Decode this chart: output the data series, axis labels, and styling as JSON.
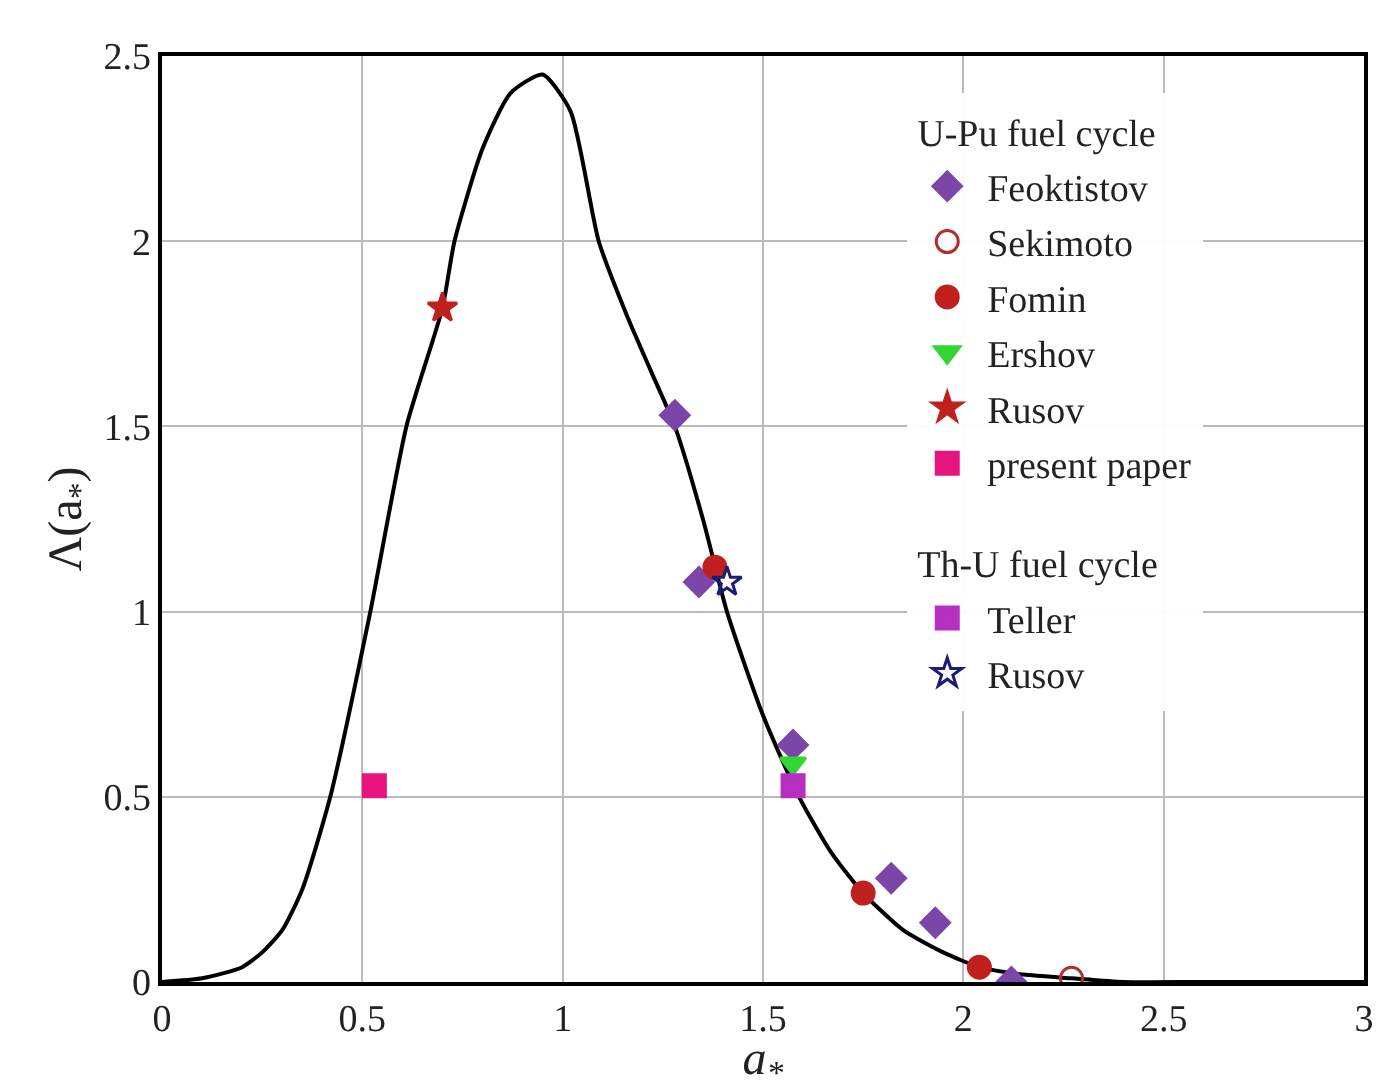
{
  "chart_data": {
    "type": "scatter",
    "xlabel": "a$_{*}$",
    "ylabel": "Λ(a$_{*}$)",
    "xlim": [
      0,
      3
    ],
    "ylim": [
      0,
      2.5
    ],
    "xticks": [
      0,
      0.5,
      1,
      1.5,
      2,
      2.5,
      3
    ],
    "yticks": [
      0,
      0.5,
      1,
      1.5,
      2,
      2.5
    ],
    "grid": true,
    "legend": "top right",
    "legend_title": [
      "U-Pu fuel cycle",
      "Th-U fuel cycle"
    ],
    "series": [
      {
        "name": "Feoktistov",
        "color": "#7b46a8",
        "marker": "diamond",
        "x": [
          1.28,
          1.34,
          1.575,
          1.82,
          1.93,
          2.12
        ],
        "values": [
          1.53,
          1.08,
          0.64,
          0.28,
          0.16,
          0
        ]
      },
      {
        "name": "Sekimoto",
        "color": "#b03030",
        "marker": "circle-open",
        "x": [
          2.27
        ],
        "values": [
          0.01
        ]
      },
      {
        "name": "Fomin",
        "color": "#c0201e",
        "marker": "circle",
        "x": [
          1.38,
          1.75,
          2.04
        ],
        "values": [
          1.12,
          0.24,
          0.04
        ]
      },
      {
        "name": "Ershov",
        "color": "#33d633",
        "marker": "triangle-down",
        "x": [
          1.575
        ],
        "values": [
          0.59
        ]
      },
      {
        "name": "Rusov",
        "color": "#c0201e",
        "marker": "star",
        "x": [
          0.7
        ],
        "values": [
          1.82
        ]
      },
      {
        "name": "present paper",
        "color": "#e8147f",
        "marker": "square",
        "x": [
          0.53
        ],
        "values": [
          0.53
        ]
      },
      {
        "type": "line",
        "color": "#000000",
        "marker": "none",
        "line_style": "solid",
        "x": [
          0,
          0.1,
          0.2,
          0.25,
          0.3,
          0.35,
          0.42,
          0.52,
          0.61,
          0.7,
          0.73,
          0.8,
          0.87,
          0.95,
          1.02,
          1.09,
          1.16,
          1.22,
          1.28,
          1.35,
          1.41,
          1.5,
          1.59,
          1.67,
          1.75,
          1.85,
          1.95,
          2.04,
          2.15,
          2.27,
          2.4,
          2.6,
          3
        ],
        "values": [
          0,
          0.01,
          0.04,
          0.08,
          0.14,
          0.25,
          0.5,
          1,
          1.5,
          1.82,
          2,
          2.25,
          2.4,
          2.45,
          2.35,
          2,
          1.8,
          1.65,
          1.5,
          1.25,
          1,
          0.72,
          0.5,
          0.35,
          0.24,
          0.14,
          0.08,
          0.04,
          0.02,
          0.01,
          0,
          0,
          0
        ]
      },
      {
        "name": "Teller",
        "color": "#b62fc0",
        "marker": "square",
        "x": [
          1.575
        ],
        "values": [
          0.53
        ]
      },
      {
        "name": "Rusov",
        "color": "#1c1c74",
        "marker": "star-open",
        "x": [
          1.41
        ],
        "values": [
          1.08
        ]
      }
    ]
  }
}
